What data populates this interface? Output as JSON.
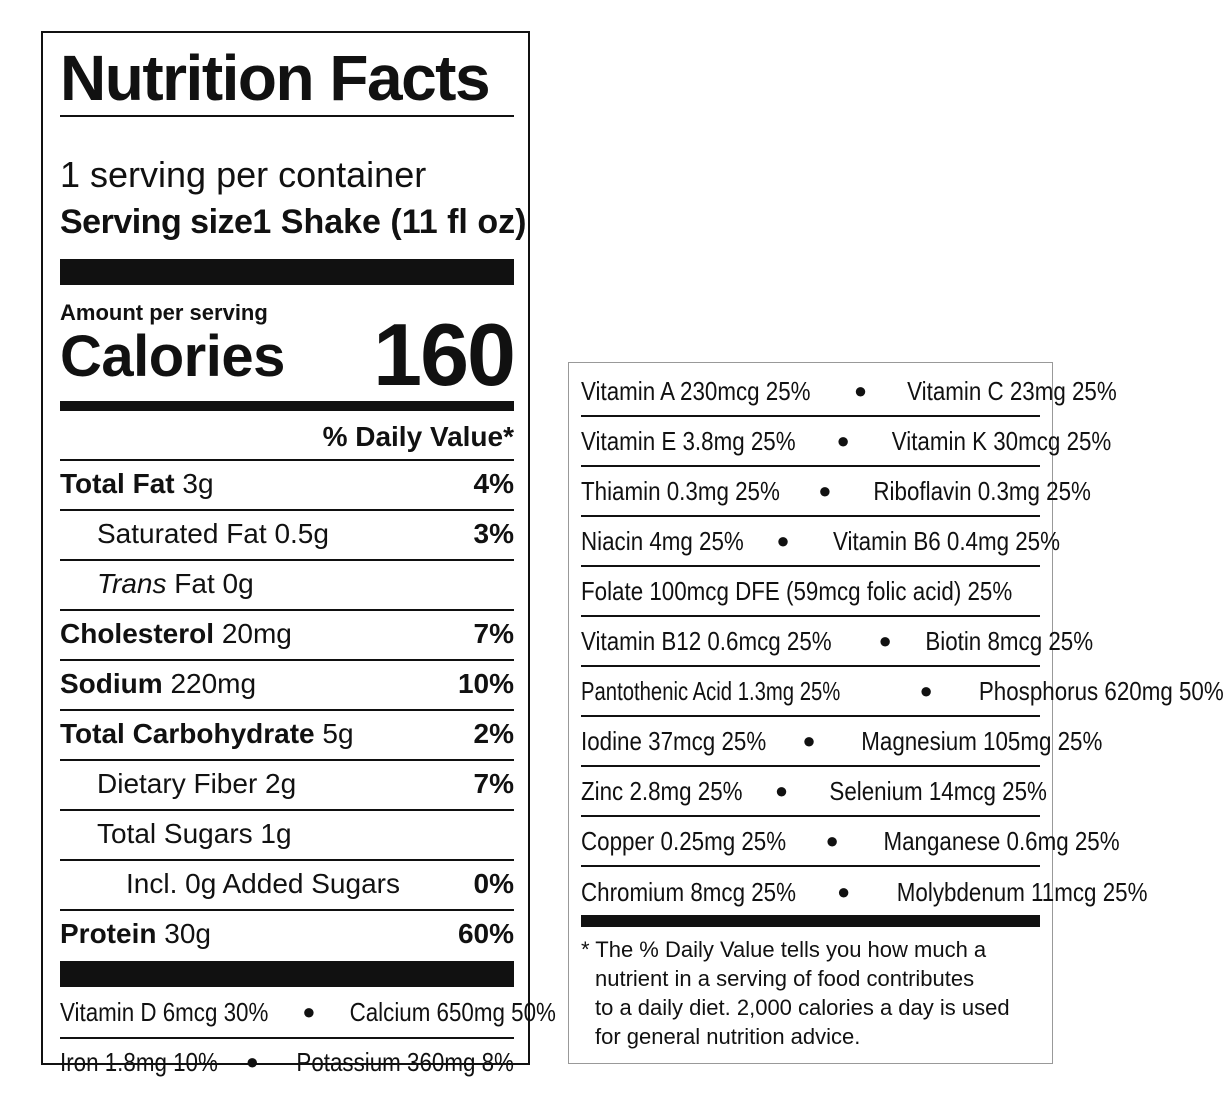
{
  "label": {
    "title": "Nutrition Facts",
    "servings_per_container": "1 serving per container",
    "serving_size_label": "Serving size",
    "serving_size_value": "1 Shake (11 fl oz)",
    "amount_per_serving": "Amount per serving",
    "calories_label": "Calories",
    "calories_value": "160",
    "daily_value_header": "% Daily Value*",
    "nutrients": [
      {
        "name": "Total Fat",
        "amount": "3g",
        "dv": "4%"
      },
      {
        "name": "Saturated Fat",
        "amount": "0.5g",
        "dv": "3%"
      },
      {
        "name": "Trans",
        "name_suffix": "Fat",
        "amount": "0g",
        "dv": ""
      },
      {
        "name": "Cholesterol",
        "amount": "20mg",
        "dv": "7%"
      },
      {
        "name": "Sodium",
        "amount": "220mg",
        "dv": "10%"
      },
      {
        "name": "Total Carbohydrate",
        "amount": "5g",
        "dv": "2%"
      },
      {
        "name": "Dietary Fiber",
        "amount": "2g",
        "dv": "7%"
      },
      {
        "name": "Total Sugars",
        "amount": "1g",
        "dv": ""
      },
      {
        "name": "Incl. 0g Added Sugars",
        "amount": "",
        "dv": "0%"
      },
      {
        "name": "Protein",
        "amount": "30g",
        "dv": "60%"
      }
    ],
    "minerals": [
      {
        "left": "Vitamin D 6mcg 30%",
        "right": "Calcium 650mg 50%"
      },
      {
        "left": "Iron 1.8mg 10%",
        "right": "Potassium 360mg 8%"
      }
    ]
  },
  "vitamins_panel": {
    "rows": [
      {
        "left": "Vitamin A 230mcg 25%",
        "right": "Vitamin C 23mg 25%"
      },
      {
        "left": "Vitamin E 3.8mg 25%",
        "right": "Vitamin K 30mcg 25%"
      },
      {
        "left": "Thiamin 0.3mg 25%",
        "right": "Riboflavin 0.3mg 25%"
      },
      {
        "left": "Niacin 4mg 25%",
        "right": "Vitamin B6 0.4mg 25%"
      },
      {
        "left": "Folate 100mcg DFE (59mcg folic acid) 25%",
        "right": ""
      },
      {
        "left": "Vitamin B12 0.6mcg 25%",
        "right": "Biotin 8mcg 25%"
      },
      {
        "left": "Pantothenic Acid 1.3mg 25%",
        "right": "Phosphorus 620mg 50%"
      },
      {
        "left": "Iodine 37mcg 25%",
        "right": "Magnesium 105mg 25%"
      },
      {
        "left": "Zinc 2.8mg 25%",
        "right": "Selenium 14mcg 25%"
      },
      {
        "left": "Copper 0.25mg 25%",
        "right": "Manganese 0.6mg 25%"
      },
      {
        "left": "Chromium 8mcg 25%",
        "right": "Molybdenum 11mcg 25%"
      }
    ],
    "bullet": "●",
    "footnote_lines": [
      "* The % Daily Value tells you how much a",
      "nutrient in a serving of food contributes",
      "to a daily diet. 2,000 calories a day is used",
      "for general nutrition advice."
    ]
  }
}
